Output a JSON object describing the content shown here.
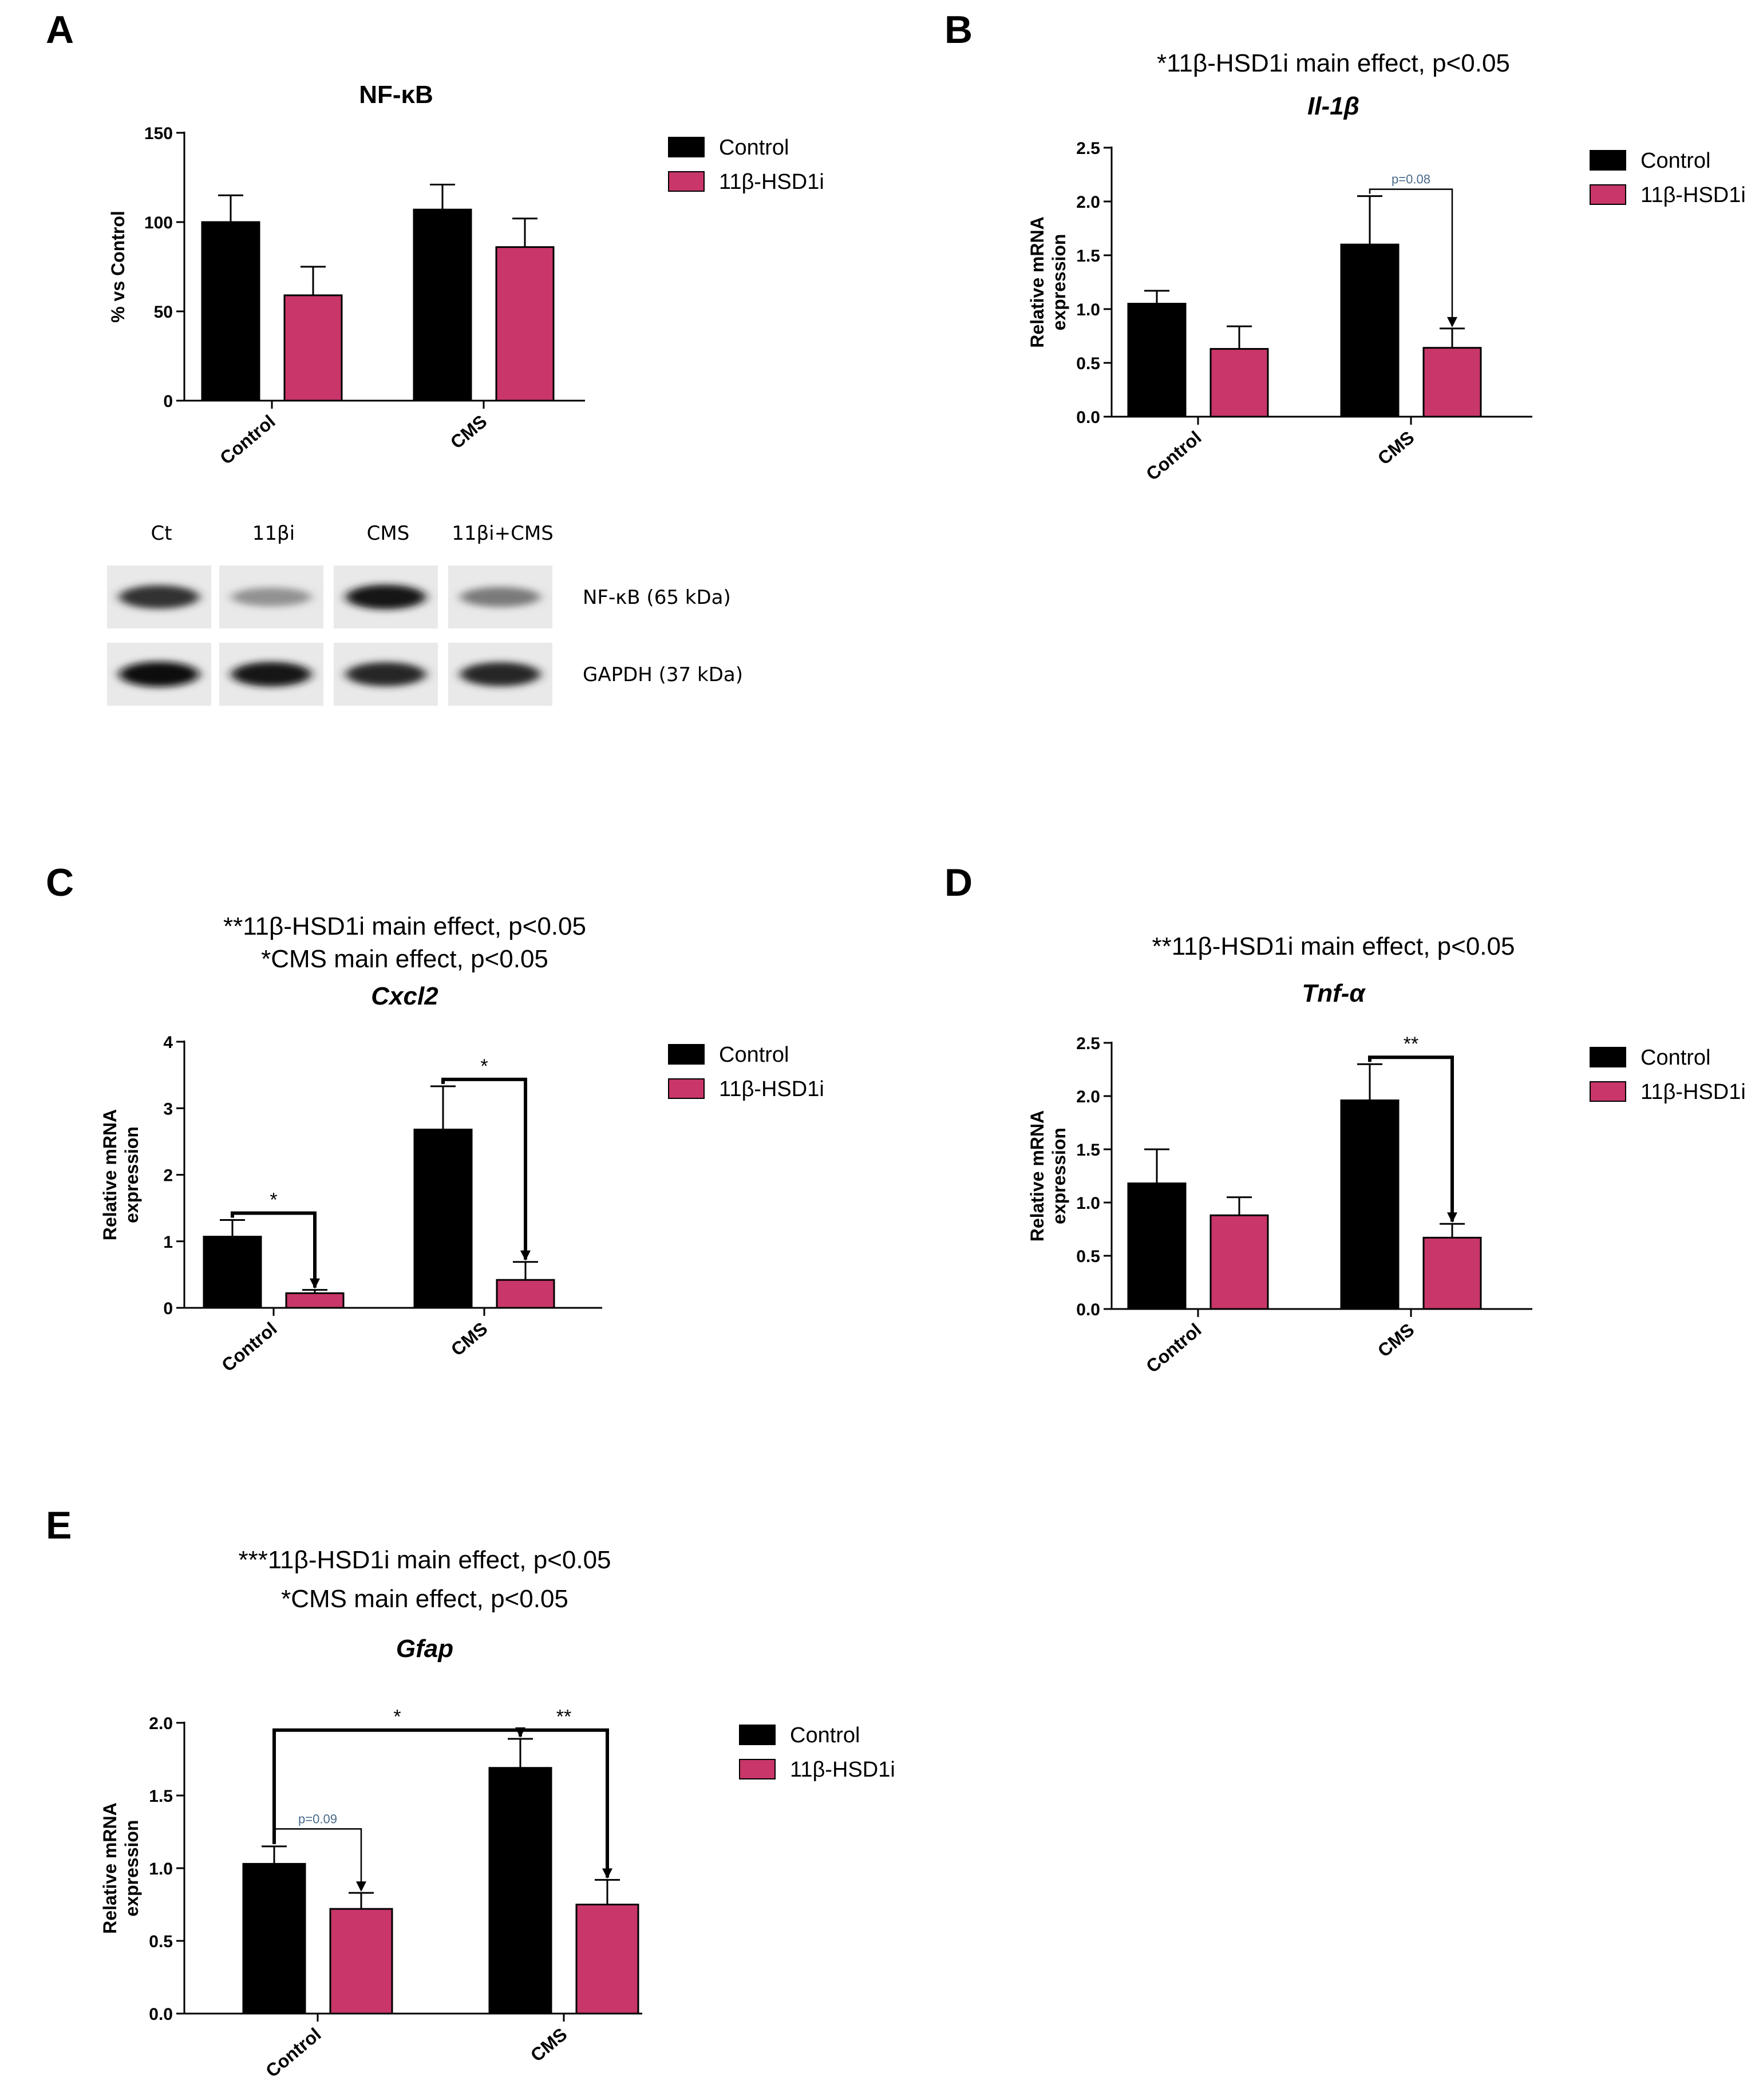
{
  "colors": {
    "control": "#000000",
    "treated": "#c8366a"
  },
  "legend": {
    "control": "Control",
    "treated": "11β-HSD1i"
  },
  "chart_data": [
    {
      "id": "A",
      "letter": "A",
      "type": "bar",
      "title": "NF-κB",
      "title_italic": false,
      "notes": [],
      "categories": [
        "Control",
        "CMS"
      ],
      "series": [
        {
          "name": "Control",
          "values": [
            100,
            107
          ],
          "errors": [
            15,
            14
          ]
        },
        {
          "name": "11β-HSD1i",
          "values": [
            59,
            86
          ],
          "errors": [
            16,
            16
          ]
        }
      ],
      "ylabel": "% vs Control",
      "ylim": [
        0,
        150
      ],
      "yticks": [
        0,
        50,
        100,
        150
      ],
      "tick_format": "int",
      "brackets": []
    },
    {
      "id": "B",
      "letter": "B",
      "type": "bar",
      "title": "Il-1β",
      "title_italic": true,
      "notes": [
        "*11β-HSD1i main effect, p<0.05"
      ],
      "categories": [
        "Control",
        "CMS"
      ],
      "series": [
        {
          "name": "Control",
          "values": [
            1.05,
            1.6
          ],
          "errors": [
            0.12,
            0.45
          ]
        },
        {
          "name": "11β-HSD1i",
          "values": [
            0.63,
            0.64
          ],
          "errors": [
            0.21,
            0.18
          ]
        }
      ],
      "ylabel": "Relative mRNA expression",
      "ylim": [
        0,
        2.5
      ],
      "yticks": [
        0,
        0.5,
        1,
        1.5,
        2,
        2.5
      ],
      "tick_format": "1dp",
      "brackets": [
        {
          "from": [
            1,
            0
          ],
          "to": [
            1,
            1
          ],
          "label": "p=0.08",
          "small": true
        }
      ]
    },
    {
      "id": "C",
      "letter": "C",
      "type": "bar",
      "title": "Cxcl2",
      "title_italic": true,
      "notes": [
        "**11β-HSD1i main effect, p<0.05",
        "*CMS main effect, p<0.05"
      ],
      "categories": [
        "Control",
        "CMS"
      ],
      "series": [
        {
          "name": "Control",
          "values": [
            1.07,
            2.68
          ],
          "errors": [
            0.25,
            0.65
          ]
        },
        {
          "name": "11β-HSD1i",
          "values": [
            0.22,
            0.42
          ],
          "errors": [
            0.05,
            0.27
          ]
        }
      ],
      "ylabel": "Relative mRNA expression",
      "ylim": [
        0,
        4
      ],
      "yticks": [
        0,
        1,
        2,
        3,
        4
      ],
      "tick_format": "int",
      "brackets": [
        {
          "from": [
            0,
            0
          ],
          "to": [
            0,
            1
          ],
          "label": "*",
          "small": false
        },
        {
          "from": [
            1,
            0
          ],
          "to": [
            1,
            1
          ],
          "label": "*",
          "small": false
        }
      ]
    },
    {
      "id": "D",
      "letter": "D",
      "type": "bar",
      "title": "Tnf-α",
      "title_italic": true,
      "notes": [
        "**11β-HSD1i main effect, p<0.05"
      ],
      "categories": [
        "Control",
        "CMS"
      ],
      "series": [
        {
          "name": "Control",
          "values": [
            1.18,
            1.96
          ],
          "errors": [
            0.32,
            0.34
          ]
        },
        {
          "name": "11β-HSD1i",
          "values": [
            0.88,
            0.67
          ],
          "errors": [
            0.17,
            0.13
          ]
        }
      ],
      "ylabel": "Relative mRNA expression",
      "ylim": [
        0,
        2.5
      ],
      "yticks": [
        0,
        0.5,
        1,
        1.5,
        2,
        2.5
      ],
      "tick_format": "1dp",
      "brackets": [
        {
          "from": [
            1,
            0
          ],
          "to": [
            1,
            1
          ],
          "label": "**",
          "small": false
        }
      ]
    },
    {
      "id": "E",
      "letter": "E",
      "type": "bar",
      "title": "Gfap",
      "title_italic": true,
      "notes": [
        "***11β-HSD1i main effect, p<0.05",
        "*CMS main effect, p<0.05"
      ],
      "categories": [
        "Control",
        "CMS"
      ],
      "series": [
        {
          "name": "Control",
          "values": [
            1.03,
            1.69
          ],
          "errors": [
            0.12,
            0.2
          ]
        },
        {
          "name": "11β-HSD1i",
          "values": [
            0.72,
            0.75
          ],
          "errors": [
            0.11,
            0.17
          ]
        }
      ],
      "ylabel": "Relative mRNA expression",
      "ylim": [
        0,
        2.0
      ],
      "yticks": [
        0,
        0.5,
        1,
        1.5,
        2
      ],
      "tick_format": "1dp",
      "brackets": [
        {
          "from": [
            0,
            0
          ],
          "to": [
            0,
            1
          ],
          "label": "p=0.09",
          "small": true
        },
        {
          "from": [
            0,
            0
          ],
          "to": [
            1,
            0
          ],
          "label": "*",
          "small": false
        },
        {
          "from": [
            1,
            0
          ],
          "to": [
            1,
            1
          ],
          "label": "**",
          "small": false
        }
      ]
    }
  ],
  "blot": {
    "lanes": [
      "Ct",
      "11βi",
      "CMS",
      "11βi+CMS"
    ],
    "rows": [
      {
        "label": "NF-κB (65 kDa)",
        "intensity": [
          0.85,
          0.45,
          0.95,
          0.55
        ]
      },
      {
        "label": "GAPDH (37 kDa)",
        "intensity": [
          1.0,
          0.95,
          0.9,
          0.9
        ]
      }
    ]
  }
}
